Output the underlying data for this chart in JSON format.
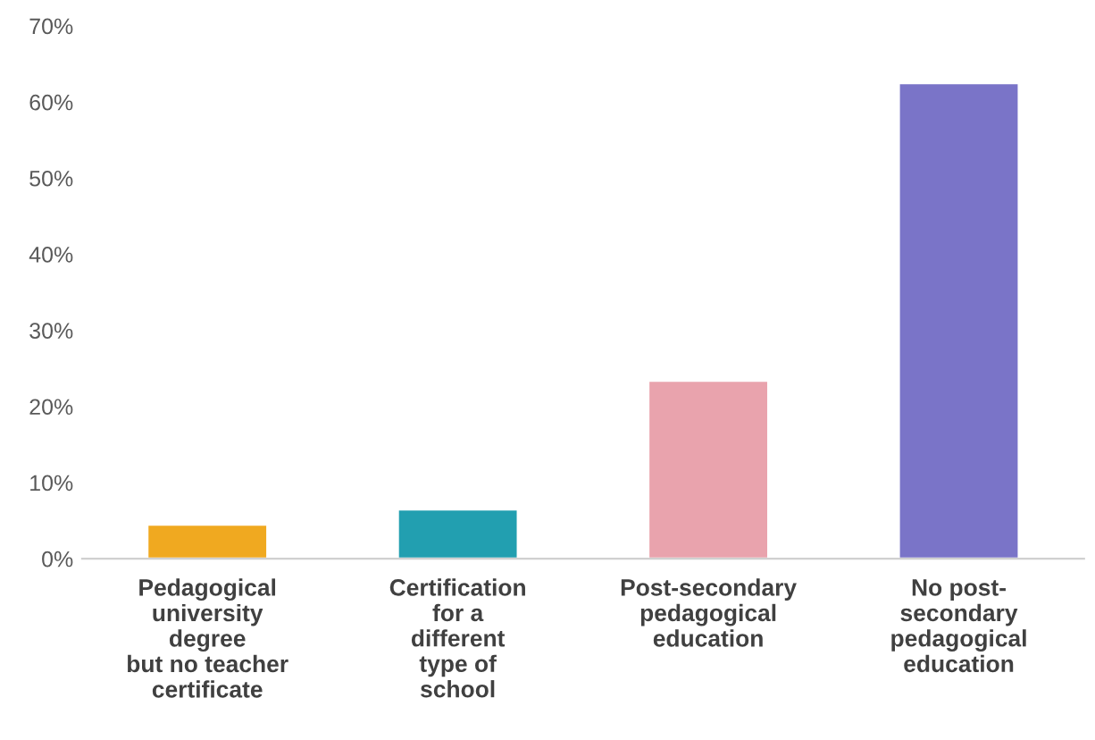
{
  "chart_data": {
    "type": "bar",
    "categories": [
      "Pedagogical\nuniversity\ndegree\nbut no teacher\ncertificate",
      "Certification\nfor a\ndifferent\ntype of\nschool",
      "Post-secondary\npedagogical\neducation",
      "No post-\nsecondary\npedagogical\neducation"
    ],
    "values": [
      4.5,
      6.5,
      23.4,
      62.5
    ],
    "colors": [
      "#f0a920",
      "#229fb0",
      "#e9a3ad",
      "#7a74c8"
    ],
    "ylim": [
      0,
      70
    ],
    "yticks": [
      {
        "value": 0,
        "label": "0%"
      },
      {
        "value": 10,
        "label": "10%"
      },
      {
        "value": 20,
        "label": "20%"
      },
      {
        "value": 30,
        "label": "30%"
      },
      {
        "value": 40,
        "label": "40%"
      },
      {
        "value": 50,
        "label": "50%"
      },
      {
        "value": 60,
        "label": "60%"
      },
      {
        "value": 70,
        "label": "70%"
      }
    ],
    "grid": false,
    "legend": false
  }
}
